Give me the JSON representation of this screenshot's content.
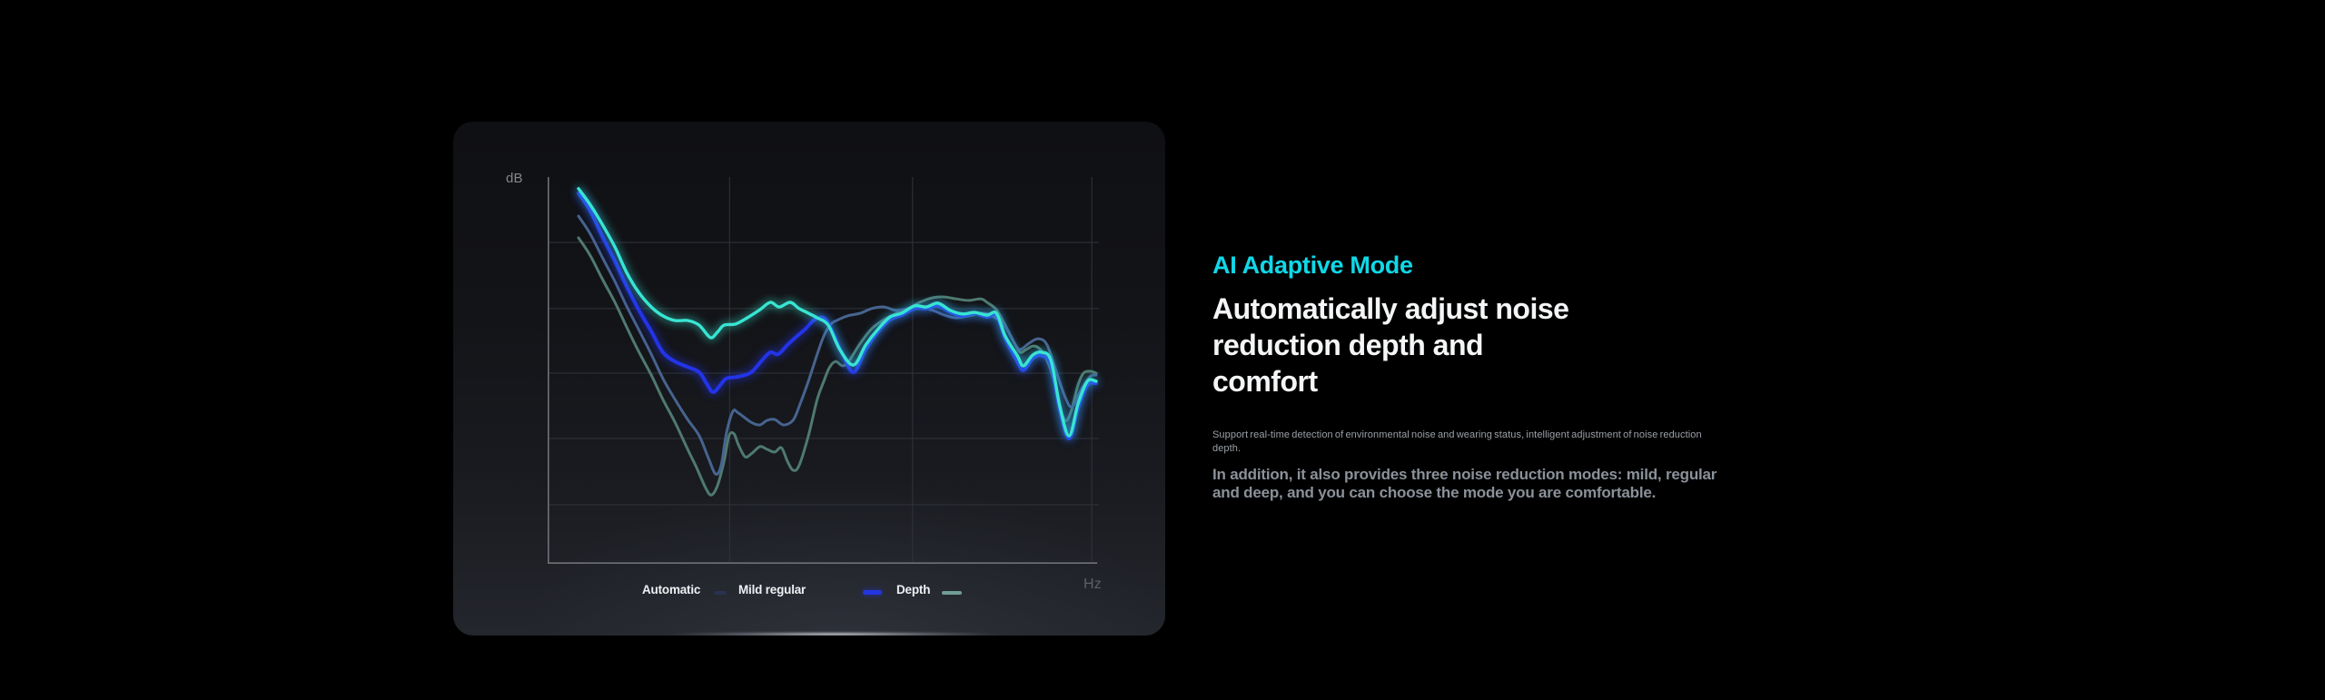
{
  "colors": {
    "page_background": "#000000",
    "panel_background_top": "#0f1013",
    "panel_background_bottom": "#24262d",
    "accent": "#10d8e8",
    "heading_text": "#f4f5f6",
    "small_text": "#9aa0a7",
    "body_text": "#8b9199",
    "legend_text": "#eef0f3",
    "axis_text": "#84878c",
    "grid_line": "#303339",
    "axis_spine": "#6e7176"
  },
  "chart": {
    "ylabel": "dB",
    "xlabel": "Hz"
  },
  "chart_data": {
    "type": "line",
    "title": "",
    "xlabel": "Hz",
    "ylabel": "dB",
    "axis_note": "no numeric tick labels shown; point coordinates are percentages of plot area (x: 0 left - 100 right, y: 0 bottom - 100 top)",
    "legend_position": "bottom",
    "grid": {
      "h_y_pct": [
        16.9,
        34.0,
        50.7,
        67.6,
        84.7
      ],
      "v_x_pct": [
        33.0,
        66.2,
        98.7
      ]
    },
    "legend": [
      {
        "label": "Automatic",
        "swatch_color": "#27334f"
      },
      {
        "label": "Mild regular",
        "swatch_color": "#2336e0"
      },
      {
        "label": "Depth",
        "swatch_color": "#6f9e97"
      }
    ],
    "series": [
      {
        "name": "sage-teal (deepest reduction curve)",
        "color": "#4f7a6f",
        "width": 3,
        "bright": false,
        "points": [
          [
            5.6,
            84.3
          ],
          [
            7.7,
            79.8
          ],
          [
            9.9,
            73.7
          ],
          [
            12.2,
            67.6
          ],
          [
            14.3,
            61.3
          ],
          [
            16.5,
            54.9
          ],
          [
            18.8,
            48.8
          ],
          [
            20.9,
            42.5
          ],
          [
            23.1,
            36.6
          ],
          [
            25.4,
            29.6
          ],
          [
            27.0,
            24.9
          ],
          [
            28.7,
            19.5
          ],
          [
            29.7,
            17.8
          ],
          [
            30.8,
            20.2
          ],
          [
            32.0,
            26.5
          ],
          [
            32.9,
            33.1
          ],
          [
            33.8,
            33.6
          ],
          [
            34.6,
            30.8
          ],
          [
            35.8,
            27.7
          ],
          [
            36.9,
            28.4
          ],
          [
            38.5,
            30.3
          ],
          [
            39.8,
            29.6
          ],
          [
            41.2,
            28.9
          ],
          [
            42.4,
            30.0
          ],
          [
            43.5,
            26.5
          ],
          [
            44.5,
            24.2
          ],
          [
            45.6,
            25.4
          ],
          [
            47.3,
            33.1
          ],
          [
            48.9,
            42.5
          ],
          [
            50.1,
            47.2
          ],
          [
            51.1,
            50.7
          ],
          [
            52.2,
            52.3
          ],
          [
            53.5,
            51.2
          ],
          [
            54.6,
            52.3
          ],
          [
            56.7,
            57.0
          ],
          [
            58.8,
            60.8
          ],
          [
            61.0,
            63.1
          ],
          [
            63.3,
            64.8
          ],
          [
            65.4,
            66.0
          ],
          [
            67.5,
            67.6
          ],
          [
            69.9,
            68.8
          ],
          [
            72.0,
            69.0
          ],
          [
            74.1,
            68.5
          ],
          [
            76.4,
            68.1
          ],
          [
            78.6,
            68.5
          ],
          [
            79.7,
            67.6
          ],
          [
            81.4,
            65.7
          ],
          [
            83.0,
            61.7
          ],
          [
            84.7,
            57.0
          ],
          [
            85.7,
            54.7
          ],
          [
            86.8,
            55.4
          ],
          [
            88.0,
            56.3
          ],
          [
            89.0,
            55.9
          ],
          [
            90.1,
            54.0
          ],
          [
            91.3,
            50.0
          ],
          [
            92.3,
            44.6
          ],
          [
            93.4,
            38.3
          ],
          [
            94.2,
            37.1
          ],
          [
            95.1,
            40.1
          ],
          [
            96.2,
            46.2
          ],
          [
            97.2,
            49.3
          ],
          [
            98.4,
            49.8
          ],
          [
            99.5,
            49.3
          ]
        ]
      },
      {
        "name": "steel-blue (shallow reduction curve)",
        "color": "#47648f",
        "width": 3,
        "bright": false,
        "points": [
          [
            5.6,
            89.9
          ],
          [
            7.7,
            85.4
          ],
          [
            9.9,
            79.3
          ],
          [
            12.2,
            73.0
          ],
          [
            14.3,
            66.7
          ],
          [
            16.5,
            60.6
          ],
          [
            18.8,
            54.2
          ],
          [
            20.9,
            47.9
          ],
          [
            23.1,
            42.5
          ],
          [
            25.4,
            37.3
          ],
          [
            27.5,
            33.1
          ],
          [
            29.2,
            27.2
          ],
          [
            30.5,
            23.2
          ],
          [
            31.5,
            25.6
          ],
          [
            32.4,
            33.6
          ],
          [
            33.6,
            39.4
          ],
          [
            34.6,
            39.0
          ],
          [
            36.9,
            36.6
          ],
          [
            38.5,
            35.9
          ],
          [
            39.8,
            37.1
          ],
          [
            41.2,
            37.3
          ],
          [
            42.8,
            35.9
          ],
          [
            44.5,
            37.1
          ],
          [
            45.6,
            40.6
          ],
          [
            47.3,
            47.2
          ],
          [
            48.9,
            54.2
          ],
          [
            50.1,
            58.9
          ],
          [
            51.4,
            62.0
          ],
          [
            52.7,
            63.1
          ],
          [
            54.4,
            64.1
          ],
          [
            56.7,
            64.8
          ],
          [
            58.8,
            66.0
          ],
          [
            61.0,
            66.4
          ],
          [
            63.3,
            65.5
          ],
          [
            65.4,
            66.0
          ],
          [
            67.5,
            66.4
          ],
          [
            69.9,
            65.5
          ],
          [
            72.0,
            64.3
          ],
          [
            74.1,
            63.6
          ],
          [
            76.4,
            64.1
          ],
          [
            78.6,
            64.8
          ],
          [
            80.7,
            64.1
          ],
          [
            83.0,
            61.3
          ],
          [
            84.7,
            57.0
          ],
          [
            85.7,
            55.4
          ],
          [
            87.3,
            57.0
          ],
          [
            89.0,
            58.2
          ],
          [
            90.6,
            56.6
          ],
          [
            92.3,
            49.5
          ],
          [
            93.9,
            43.0
          ],
          [
            95.1,
            40.6
          ],
          [
            96.7,
            44.8
          ],
          [
            98.4,
            48.4
          ],
          [
            99.5,
            48.8
          ]
        ]
      },
      {
        "name": "bright-blue (mid reduction curve)",
        "color": "#2334e8",
        "width": 4,
        "bright": true,
        "points": [
          [
            5.6,
            95.8
          ],
          [
            7.7,
            91.3
          ],
          [
            9.9,
            84.7
          ],
          [
            12.2,
            78.2
          ],
          [
            14.3,
            71.8
          ],
          [
            16.5,
            65.7
          ],
          [
            18.8,
            60.1
          ],
          [
            20.9,
            54.7
          ],
          [
            23.1,
            52.3
          ],
          [
            25.4,
            50.9
          ],
          [
            27.5,
            49.5
          ],
          [
            28.8,
            46.7
          ],
          [
            30.0,
            44.4
          ],
          [
            31.3,
            46.2
          ],
          [
            32.4,
            47.9
          ],
          [
            34.6,
            48.4
          ],
          [
            36.9,
            49.5
          ],
          [
            39.0,
            52.8
          ],
          [
            40.4,
            54.7
          ],
          [
            41.8,
            54.2
          ],
          [
            43.5,
            56.6
          ],
          [
            45.1,
            58.7
          ],
          [
            46.8,
            60.8
          ],
          [
            48.4,
            63.1
          ],
          [
            50.1,
            63.6
          ],
          [
            51.4,
            60.8
          ],
          [
            53.5,
            54.2
          ],
          [
            55.5,
            49.5
          ],
          [
            57.7,
            55.4
          ],
          [
            60.0,
            60.1
          ],
          [
            62.1,
            63.1
          ],
          [
            64.2,
            64.3
          ],
          [
            66.6,
            66.0
          ],
          [
            68.7,
            66.0
          ],
          [
            70.8,
            66.7
          ],
          [
            73.1,
            65.0
          ],
          [
            75.3,
            64.1
          ],
          [
            77.4,
            64.8
          ],
          [
            79.7,
            63.8
          ],
          [
            81.4,
            64.3
          ],
          [
            83.0,
            58.2
          ],
          [
            85.2,
            52.3
          ],
          [
            86.3,
            50.0
          ],
          [
            88.0,
            53.1
          ],
          [
            89.6,
            53.8
          ],
          [
            91.3,
            51.4
          ],
          [
            92.9,
            39.7
          ],
          [
            94.6,
            32.4
          ],
          [
            96.2,
            40.1
          ],
          [
            97.9,
            46.2
          ],
          [
            99.5,
            46.7
          ]
        ]
      },
      {
        "name": "bright-cyan (adaptive curve)",
        "color": "#38e5d2",
        "width": 3.4,
        "bright": true,
        "points": [
          [
            5.6,
            97.0
          ],
          [
            7.7,
            92.9
          ],
          [
            9.9,
            87.8
          ],
          [
            12.2,
            81.9
          ],
          [
            14.3,
            75.4
          ],
          [
            16.5,
            70.2
          ],
          [
            18.8,
            66.4
          ],
          [
            20.9,
            64.1
          ],
          [
            23.1,
            62.9
          ],
          [
            25.4,
            62.9
          ],
          [
            27.5,
            61.7
          ],
          [
            29.5,
            58.5
          ],
          [
            30.8,
            59.9
          ],
          [
            32.0,
            61.7
          ],
          [
            34.1,
            62.0
          ],
          [
            36.2,
            63.6
          ],
          [
            38.5,
            65.7
          ],
          [
            40.4,
            67.6
          ],
          [
            42.0,
            66.4
          ],
          [
            44.0,
            67.6
          ],
          [
            45.6,
            66.0
          ],
          [
            47.3,
            64.8
          ],
          [
            48.9,
            63.6
          ],
          [
            50.9,
            61.7
          ],
          [
            53.0,
            55.4
          ],
          [
            55.5,
            51.4
          ],
          [
            57.7,
            56.6
          ],
          [
            60.0,
            60.8
          ],
          [
            62.1,
            63.8
          ],
          [
            64.2,
            64.8
          ],
          [
            66.6,
            66.7
          ],
          [
            68.7,
            66.4
          ],
          [
            70.8,
            67.4
          ],
          [
            73.1,
            65.5
          ],
          [
            75.3,
            64.6
          ],
          [
            77.4,
            65.0
          ],
          [
            79.7,
            64.3
          ],
          [
            81.4,
            64.8
          ],
          [
            83.0,
            58.9
          ],
          [
            85.2,
            53.8
          ],
          [
            86.3,
            51.2
          ],
          [
            88.0,
            54.0
          ],
          [
            89.6,
            54.7
          ],
          [
            91.3,
            52.6
          ],
          [
            92.9,
            40.8
          ],
          [
            94.6,
            33.1
          ],
          [
            96.2,
            41.3
          ],
          [
            97.9,
            47.2
          ],
          [
            99.5,
            47.2
          ]
        ]
      }
    ]
  },
  "copy": {
    "eyebrow": "AI Adaptive Mode",
    "heading_lines": [
      "Automatically adjust noise",
      "reduction depth and",
      "comfort"
    ],
    "description_small_lines": [
      "Support real-time detection of environmental noise and wearing status, intelligent adjustment of noise reduction",
      "depth."
    ],
    "description_body_lines": [
      "In addition, it also provides three noise reduction modes: mild, regular",
      "and deep, and you can choose the mode you are comfortable."
    ]
  }
}
